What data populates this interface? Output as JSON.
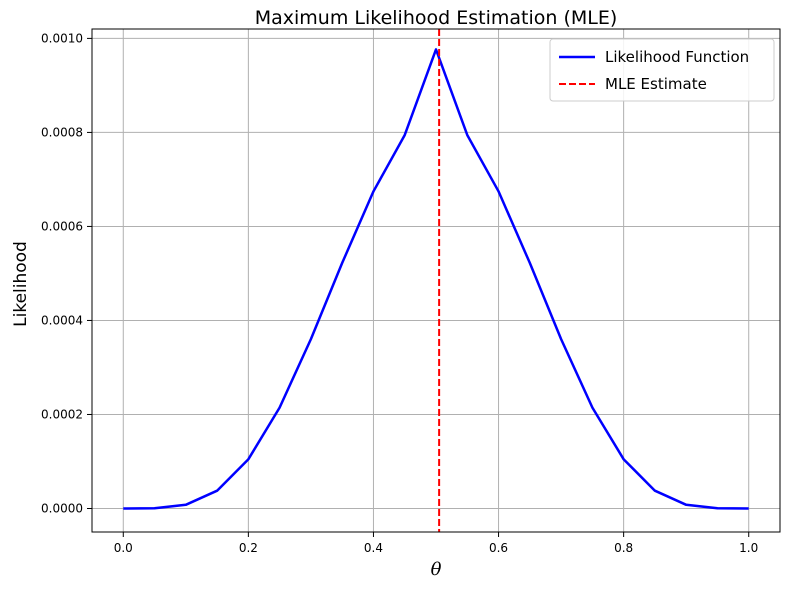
{
  "chart_data": {
    "type": "line",
    "title": "Maximum Likelihood Estimation (MLE)",
    "xlabel": "θ",
    "ylabel": "Likelihood",
    "xlim": [
      -0.05,
      1.05
    ],
    "ylim": [
      -5e-05,
      0.00102
    ],
    "x_ticks": [
      0.0,
      0.2,
      0.4,
      0.6,
      0.8,
      1.0
    ],
    "x_tick_labels": [
      "0.0",
      "0.2",
      "0.4",
      "0.6",
      "0.8",
      "1.0"
    ],
    "y_ticks": [
      0.0,
      0.0002,
      0.0004,
      0.0006,
      0.0008,
      0.001
    ],
    "y_tick_labels": [
      "0.0000",
      "0.0002",
      "0.0004",
      "0.0006",
      "0.0008",
      "0.0010"
    ],
    "grid": true,
    "legend_position": "top-right",
    "series": [
      {
        "name": "Likelihood Function",
        "color": "#0000ff",
        "style": "solid",
        "x": [
          0.0,
          0.05,
          0.1,
          0.15,
          0.2,
          0.25,
          0.3,
          0.35,
          0.4,
          0.45,
          0.5,
          0.55,
          0.6,
          0.65,
          0.7,
          0.75,
          0.8,
          0.85,
          0.9,
          0.95,
          1.0
        ],
        "y": [
          0.0,
          4e-07,
          7.9e-06,
          3.78e-05,
          0.0001049,
          0.0002146,
          0.0003603,
          0.0005225,
          0.0006748,
          0.0007943,
          0.0009766,
          0.0007943,
          0.0006748,
          0.0005225,
          0.0003603,
          0.0002146,
          0.0001049,
          3.78e-05,
          7.9e-06,
          4e-07,
          0.0
        ]
      }
    ],
    "reference_lines": [
      {
        "name": "MLE Estimate",
        "orientation": "vertical",
        "x": 0.505,
        "color": "#ff0000",
        "style": "dashed"
      }
    ]
  }
}
